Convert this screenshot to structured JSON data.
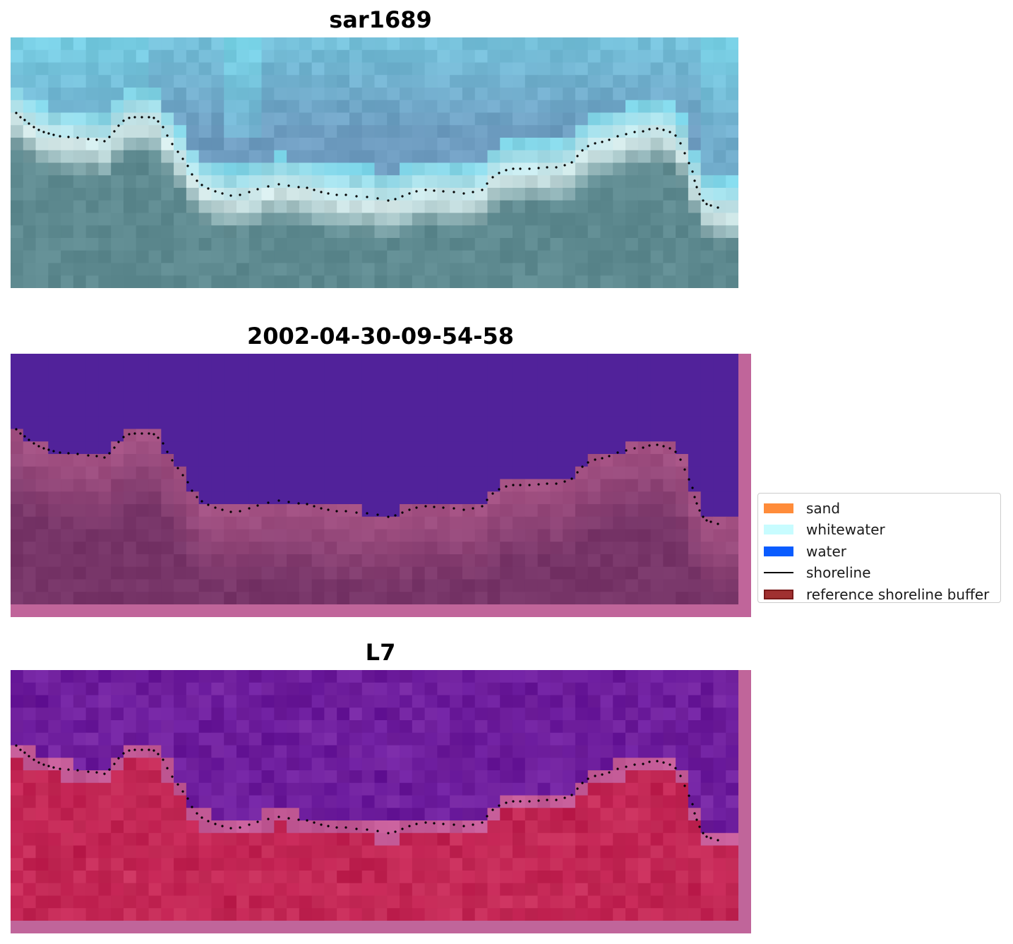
{
  "panels": [
    {
      "title": "sar1689"
    },
    {
      "title": "2002-04-30-09-54-58"
    },
    {
      "title": "L7"
    }
  ],
  "legend": {
    "items": [
      {
        "label": "sand",
        "color": "#ff8c3a",
        "kind": "patch"
      },
      {
        "label": "whitewater",
        "color": "#c8fcff",
        "kind": "patch"
      },
      {
        "label": "water",
        "color": "#0a5cff",
        "kind": "patch"
      },
      {
        "label": "shoreline",
        "color": "#000000",
        "kind": "line"
      },
      {
        "label": "reference shoreline buffer",
        "color": "#a03030",
        "border": "#7a1a1a",
        "kind": "patch"
      }
    ]
  },
  "colors": {
    "rgb_sky": "#6e9cc0",
    "rgb_surf": "#d8ecec",
    "rgb_land": "#5e8a90",
    "class_water": "#51229a",
    "class_land": "#773568",
    "class_buffer": "#bf6394",
    "ndwi_high": "#6a1a9c",
    "ndwi_low": "#c02050",
    "frame_pink": "#c0659a"
  }
}
